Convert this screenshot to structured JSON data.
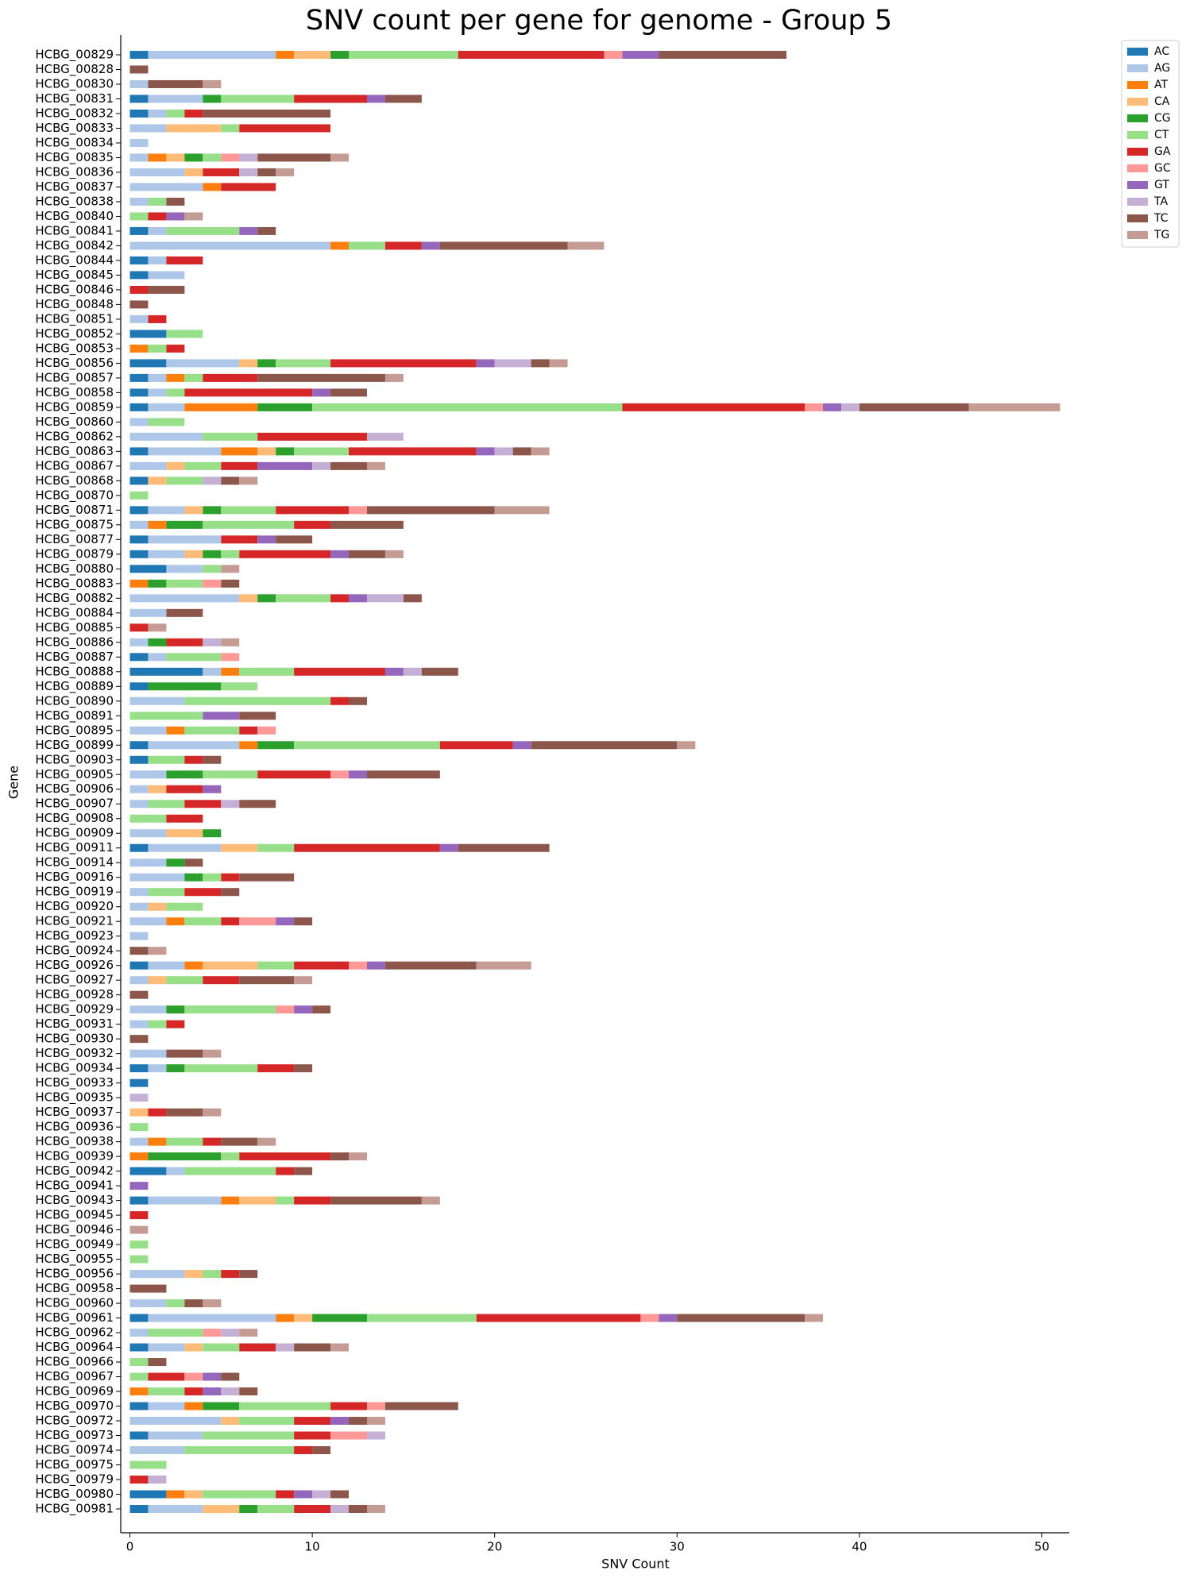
{
  "chart_data": {
    "type": "stacked-barh",
    "title": "SNV count per gene for genome - Group 5",
    "x_label": "SNV Count",
    "y_label": "Gene",
    "xlim": [
      -0.5,
      51.5
    ],
    "xticks": [
      0,
      10,
      20,
      30,
      40,
      50
    ],
    "legend": "upper-right-outside",
    "categories": [
      "HCBG_00829",
      "HCBG_00828",
      "HCBG_00830",
      "HCBG_00831",
      "HCBG_00832",
      "HCBG_00833",
      "HCBG_00834",
      "HCBG_00835",
      "HCBG_00836",
      "HCBG_00837",
      "HCBG_00838",
      "HCBG_00840",
      "HCBG_00841",
      "HCBG_00842",
      "HCBG_00844",
      "HCBG_00845",
      "HCBG_00846",
      "HCBG_00848",
      "HCBG_00851",
      "HCBG_00852",
      "HCBG_00853",
      "HCBG_00856",
      "HCBG_00857",
      "HCBG_00858",
      "HCBG_00859",
      "HCBG_00860",
      "HCBG_00862",
      "HCBG_00863",
      "HCBG_00867",
      "HCBG_00868",
      "HCBG_00870",
      "HCBG_00871",
      "HCBG_00875",
      "HCBG_00877",
      "HCBG_00879",
      "HCBG_00880",
      "HCBG_00883",
      "HCBG_00882",
      "HCBG_00884",
      "HCBG_00885",
      "HCBG_00886",
      "HCBG_00887",
      "HCBG_00888",
      "HCBG_00889",
      "HCBG_00890",
      "HCBG_00891",
      "HCBG_00895",
      "HCBG_00899",
      "HCBG_00903",
      "HCBG_00905",
      "HCBG_00906",
      "HCBG_00907",
      "HCBG_00908",
      "HCBG_00909",
      "HCBG_00911",
      "HCBG_00914",
      "HCBG_00916",
      "HCBG_00919",
      "HCBG_00920",
      "HCBG_00921",
      "HCBG_00923",
      "HCBG_00924",
      "HCBG_00926",
      "HCBG_00927",
      "HCBG_00928",
      "HCBG_00929",
      "HCBG_00931",
      "HCBG_00930",
      "HCBG_00932",
      "HCBG_00934",
      "HCBG_00933",
      "HCBG_00935",
      "HCBG_00937",
      "HCBG_00936",
      "HCBG_00938",
      "HCBG_00939",
      "HCBG_00942",
      "HCBG_00941",
      "HCBG_00943",
      "HCBG_00945",
      "HCBG_00946",
      "HCBG_00949",
      "HCBG_00955",
      "HCBG_00956",
      "HCBG_00958",
      "HCBG_00960",
      "HCBG_00961",
      "HCBG_00962",
      "HCBG_00964",
      "HCBG_00966",
      "HCBG_00967",
      "HCBG_00969",
      "HCBG_00970",
      "HCBG_00972",
      "HCBG_00973",
      "HCBG_00974",
      "HCBG_00975",
      "HCBG_00979",
      "HCBG_00980",
      "HCBG_00981"
    ],
    "series": [
      {
        "name": "AC",
        "color": "#1f77b4",
        "values": [
          1,
          0,
          0,
          1,
          1,
          0,
          0,
          0,
          0,
          0,
          0,
          0,
          1,
          0,
          1,
          1,
          0,
          0,
          0,
          2,
          0,
          2,
          1,
          1,
          1,
          0,
          0,
          1,
          0,
          1,
          0,
          1,
          0,
          1,
          1,
          2,
          0,
          0,
          0,
          0,
          0,
          1,
          4,
          1,
          0,
          0,
          0,
          1,
          1,
          0,
          0,
          0,
          0,
          0,
          1,
          0,
          0,
          0,
          0,
          0,
          0,
          0,
          1,
          0,
          0,
          0,
          0,
          0,
          0,
          1,
          1,
          0,
          0,
          0,
          0,
          0,
          2,
          0,
          1,
          0,
          0,
          0,
          0,
          0,
          0,
          0,
          1,
          0,
          1,
          0,
          0,
          0,
          1,
          0,
          1,
          0,
          0,
          0,
          2,
          1
        ]
      },
      {
        "name": "AG",
        "color": "#aec7e8",
        "values": [
          7,
          0,
          1,
          3,
          1,
          2,
          1,
          1,
          3,
          4,
          1,
          0,
          1,
          11,
          1,
          2,
          0,
          0,
          1,
          0,
          0,
          4,
          1,
          1,
          2,
          1,
          4,
          4,
          2,
          0,
          0,
          2,
          1,
          4,
          2,
          2,
          0,
          6,
          2,
          0,
          1,
          1,
          1,
          0,
          3,
          0,
          2,
          5,
          0,
          2,
          1,
          1,
          0,
          2,
          4,
          2,
          3,
          1,
          1,
          2,
          1,
          0,
          2,
          1,
          0,
          2,
          1,
          0,
          2,
          1,
          0,
          0,
          0,
          0,
          1,
          0,
          1,
          0,
          4,
          0,
          0,
          0,
          0,
          3,
          0,
          2,
          7,
          1,
          2,
          0,
          0,
          0,
          2,
          5,
          3,
          3,
          0,
          0,
          0,
          3
        ]
      },
      {
        "name": "AT",
        "color": "#ff7f0e",
        "values": [
          1,
          0,
          0,
          0,
          0,
          0,
          0,
          1,
          0,
          1,
          0,
          0,
          0,
          1,
          0,
          0,
          0,
          0,
          0,
          0,
          1,
          0,
          1,
          0,
          4,
          0,
          0,
          2,
          0,
          0,
          0,
          0,
          1,
          0,
          0,
          0,
          1,
          0,
          0,
          0,
          0,
          0,
          1,
          0,
          0,
          0,
          1,
          1,
          0,
          0,
          0,
          0,
          0,
          0,
          0,
          0,
          0,
          0,
          0,
          1,
          0,
          0,
          1,
          0,
          0,
          0,
          0,
          0,
          0,
          0,
          0,
          0,
          0,
          0,
          1,
          1,
          0,
          0,
          1,
          0,
          0,
          0,
          0,
          0,
          0,
          0,
          1,
          0,
          0,
          0,
          0,
          1,
          1,
          0,
          0,
          0,
          0,
          0,
          1,
          0
        ]
      },
      {
        "name": "CA",
        "color": "#ffbb78",
        "values": [
          2,
          0,
          0,
          0,
          0,
          3,
          0,
          1,
          1,
          0,
          0,
          0,
          0,
          0,
          0,
          0,
          0,
          0,
          0,
          0,
          0,
          1,
          0,
          0,
          0,
          0,
          0,
          1,
          1,
          1,
          0,
          1,
          0,
          0,
          1,
          0,
          0,
          1,
          0,
          0,
          0,
          0,
          0,
          0,
          0,
          0,
          0,
          0,
          0,
          0,
          1,
          0,
          0,
          2,
          2,
          0,
          0,
          0,
          1,
          0,
          0,
          0,
          3,
          1,
          0,
          0,
          0,
          0,
          0,
          0,
          0,
          0,
          1,
          0,
          0,
          0,
          0,
          0,
          2,
          0,
          0,
          0,
          0,
          1,
          0,
          0,
          1,
          0,
          1,
          0,
          0,
          0,
          0,
          1,
          0,
          0,
          0,
          0,
          1,
          2
        ]
      },
      {
        "name": "CG",
        "color": "#2ca02c",
        "values": [
          1,
          0,
          0,
          1,
          0,
          0,
          0,
          1,
          0,
          0,
          0,
          0,
          0,
          0,
          0,
          0,
          0,
          0,
          0,
          0,
          0,
          1,
          0,
          0,
          3,
          0,
          0,
          1,
          0,
          0,
          0,
          1,
          2,
          0,
          1,
          0,
          1,
          1,
          0,
          0,
          1,
          0,
          0,
          4,
          0,
          0,
          0,
          2,
          0,
          2,
          0,
          0,
          0,
          1,
          0,
          1,
          1,
          0,
          0,
          0,
          0,
          0,
          0,
          0,
          0,
          1,
          0,
          0,
          0,
          1,
          0,
          0,
          0,
          0,
          0,
          4,
          0,
          0,
          0,
          0,
          0,
          0,
          0,
          0,
          0,
          0,
          3,
          0,
          0,
          0,
          0,
          0,
          2,
          0,
          0,
          0,
          0,
          0,
          0,
          1
        ]
      },
      {
        "name": "CT",
        "color": "#98df8a",
        "values": [
          6,
          0,
          0,
          4,
          1,
          1,
          0,
          1,
          0,
          0,
          1,
          1,
          4,
          2,
          0,
          0,
          0,
          0,
          0,
          2,
          1,
          3,
          1,
          1,
          17,
          2,
          3,
          3,
          2,
          2,
          1,
          3,
          5,
          0,
          1,
          1,
          2,
          3,
          0,
          0,
          0,
          3,
          3,
          2,
          8,
          4,
          3,
          8,
          2,
          3,
          0,
          2,
          2,
          0,
          2,
          0,
          1,
          2,
          2,
          2,
          0,
          0,
          2,
          2,
          0,
          5,
          1,
          0,
          0,
          4,
          0,
          0,
          0,
          1,
          2,
          1,
          5,
          0,
          1,
          0,
          0,
          1,
          1,
          1,
          0,
          1,
          6,
          3,
          2,
          1,
          1,
          2,
          5,
          3,
          5,
          6,
          2,
          0,
          4,
          2
        ]
      },
      {
        "name": "GA",
        "color": "#d62728",
        "values": [
          8,
          0,
          0,
          4,
          1,
          5,
          0,
          0,
          2,
          3,
          0,
          1,
          0,
          2,
          2,
          0,
          1,
          0,
          1,
          0,
          1,
          8,
          3,
          7,
          10,
          0,
          6,
          7,
          2,
          0,
          0,
          4,
          2,
          2,
          5,
          0,
          0,
          1,
          0,
          1,
          2,
          0,
          5,
          0,
          1,
          0,
          1,
          4,
          1,
          4,
          2,
          2,
          2,
          0,
          8,
          0,
          1,
          2,
          0,
          1,
          0,
          0,
          3,
          2,
          0,
          0,
          1,
          0,
          0,
          2,
          0,
          0,
          1,
          0,
          1,
          5,
          1,
          0,
          2,
          1,
          0,
          0,
          0,
          1,
          0,
          0,
          9,
          0,
          2,
          0,
          2,
          1,
          2,
          2,
          2,
          1,
          0,
          1,
          1,
          2
        ]
      },
      {
        "name": "GC",
        "color": "#ff9896",
        "values": [
          1,
          0,
          0,
          0,
          0,
          0,
          0,
          1,
          0,
          0,
          0,
          0,
          0,
          0,
          0,
          0,
          0,
          0,
          0,
          0,
          0,
          0,
          0,
          0,
          1,
          0,
          0,
          0,
          0,
          0,
          0,
          1,
          0,
          0,
          0,
          0,
          1,
          0,
          0,
          0,
          0,
          1,
          0,
          0,
          0,
          0,
          1,
          0,
          0,
          1,
          0,
          0,
          0,
          0,
          0,
          0,
          0,
          0,
          0,
          2,
          0,
          0,
          1,
          0,
          0,
          1,
          0,
          0,
          0,
          0,
          0,
          0,
          0,
          0,
          0,
          0,
          0,
          0,
          0,
          0,
          0,
          0,
          0,
          0,
          0,
          0,
          1,
          1,
          0,
          0,
          1,
          0,
          1,
          0,
          2,
          0,
          0,
          0,
          0,
          0
        ]
      },
      {
        "name": "GT",
        "color": "#9467bd",
        "values": [
          2,
          0,
          0,
          1,
          0,
          0,
          0,
          0,
          0,
          0,
          0,
          1,
          1,
          1,
          0,
          0,
          0,
          0,
          0,
          0,
          0,
          1,
          0,
          1,
          1,
          0,
          0,
          1,
          3,
          0,
          0,
          0,
          0,
          1,
          1,
          0,
          0,
          1,
          0,
          0,
          0,
          0,
          1,
          0,
          0,
          2,
          0,
          1,
          0,
          1,
          1,
          0,
          0,
          0,
          1,
          0,
          0,
          0,
          0,
          1,
          0,
          0,
          1,
          0,
          0,
          1,
          0,
          0,
          0,
          0,
          0,
          0,
          0,
          0,
          0,
          0,
          0,
          1,
          0,
          0,
          0,
          0,
          0,
          0,
          0,
          0,
          1,
          0,
          0,
          0,
          1,
          1,
          0,
          1,
          0,
          0,
          0,
          0,
          1,
          0
        ]
      },
      {
        "name": "TA",
        "color": "#c5b0d5",
        "values": [
          0,
          0,
          0,
          0,
          0,
          0,
          0,
          1,
          1,
          0,
          0,
          0,
          0,
          0,
          0,
          0,
          0,
          0,
          0,
          0,
          0,
          2,
          0,
          0,
          1,
          0,
          2,
          1,
          1,
          1,
          0,
          0,
          0,
          0,
          0,
          0,
          0,
          2,
          0,
          0,
          1,
          0,
          1,
          0,
          0,
          0,
          0,
          0,
          0,
          0,
          0,
          1,
          0,
          0,
          0,
          0,
          0,
          0,
          0,
          0,
          0,
          0,
          0,
          0,
          0,
          0,
          0,
          0,
          0,
          0,
          0,
          1,
          0,
          0,
          0,
          0,
          0,
          0,
          0,
          0,
          0,
          0,
          0,
          0,
          0,
          0,
          0,
          1,
          1,
          0,
          0,
          1,
          0,
          0,
          1,
          0,
          0,
          1,
          1,
          1
        ]
      },
      {
        "name": "TC",
        "color": "#8c564b",
        "values": [
          7,
          1,
          3,
          2,
          7,
          0,
          0,
          4,
          1,
          0,
          1,
          0,
          1,
          7,
          0,
          0,
          2,
          1,
          0,
          0,
          0,
          1,
          7,
          2,
          6,
          0,
          0,
          1,
          2,
          1,
          0,
          7,
          4,
          2,
          2,
          0,
          1,
          1,
          2,
          0,
          0,
          0,
          2,
          0,
          1,
          2,
          0,
          8,
          1,
          4,
          0,
          2,
          0,
          0,
          5,
          1,
          3,
          1,
          0,
          1,
          0,
          1,
          5,
          3,
          1,
          1,
          0,
          1,
          2,
          1,
          0,
          0,
          2,
          0,
          2,
          1,
          1,
          0,
          5,
          0,
          0,
          0,
          0,
          1,
          2,
          1,
          7,
          0,
          2,
          1,
          1,
          1,
          4,
          1,
          0,
          1,
          0,
          0,
          1,
          1
        ]
      },
      {
        "name": "TG",
        "color": "#c49c94",
        "values": [
          0,
          0,
          1,
          0,
          0,
          0,
          0,
          1,
          1,
          0,
          0,
          1,
          0,
          2,
          0,
          0,
          0,
          0,
          0,
          0,
          0,
          1,
          1,
          0,
          5,
          0,
          0,
          1,
          1,
          1,
          0,
          3,
          0,
          0,
          1,
          1,
          0,
          0,
          0,
          1,
          1,
          0,
          0,
          0,
          0,
          0,
          0,
          1,
          0,
          0,
          0,
          0,
          0,
          0,
          0,
          0,
          0,
          0,
          0,
          0,
          0,
          1,
          3,
          1,
          0,
          0,
          0,
          0,
          1,
          0,
          0,
          0,
          1,
          0,
          1,
          1,
          0,
          0,
          1,
          0,
          1,
          0,
          0,
          0,
          0,
          1,
          1,
          1,
          1,
          0,
          0,
          0,
          0,
          1,
          0,
          0,
          0,
          0,
          0,
          1
        ]
      }
    ]
  }
}
